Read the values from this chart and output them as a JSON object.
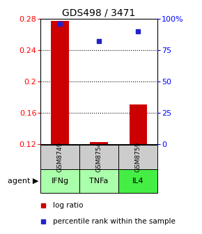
{
  "title": "GDS498 / 3471",
  "samples": [
    "GSM8749",
    "GSM8754",
    "GSM8759"
  ],
  "agents": [
    "IFNg",
    "TNFa",
    "IL4"
  ],
  "log_ratios": [
    0.277,
    0.122,
    0.17
  ],
  "percentile_ranks": [
    96,
    82,
    90
  ],
  "ylim_left": [
    0.12,
    0.28
  ],
  "ylim_right": [
    0,
    100
  ],
  "yticks_left": [
    0.12,
    0.16,
    0.2,
    0.24,
    0.28
  ],
  "yticks_right": [
    0,
    25,
    50,
    75,
    100
  ],
  "bar_color": "#cc0000",
  "dot_color": "#2222cc",
  "sample_bg": "#cccccc",
  "agent_colors": [
    "#aaffaa",
    "#aaffaa",
    "#44ee44"
  ],
  "legend_bar_label": "log ratio",
  "legend_dot_label": "percentile rank within the sample",
  "bar_width": 0.45,
  "title_fontsize": 10,
  "tick_fontsize": 8,
  "label_fontsize": 8
}
